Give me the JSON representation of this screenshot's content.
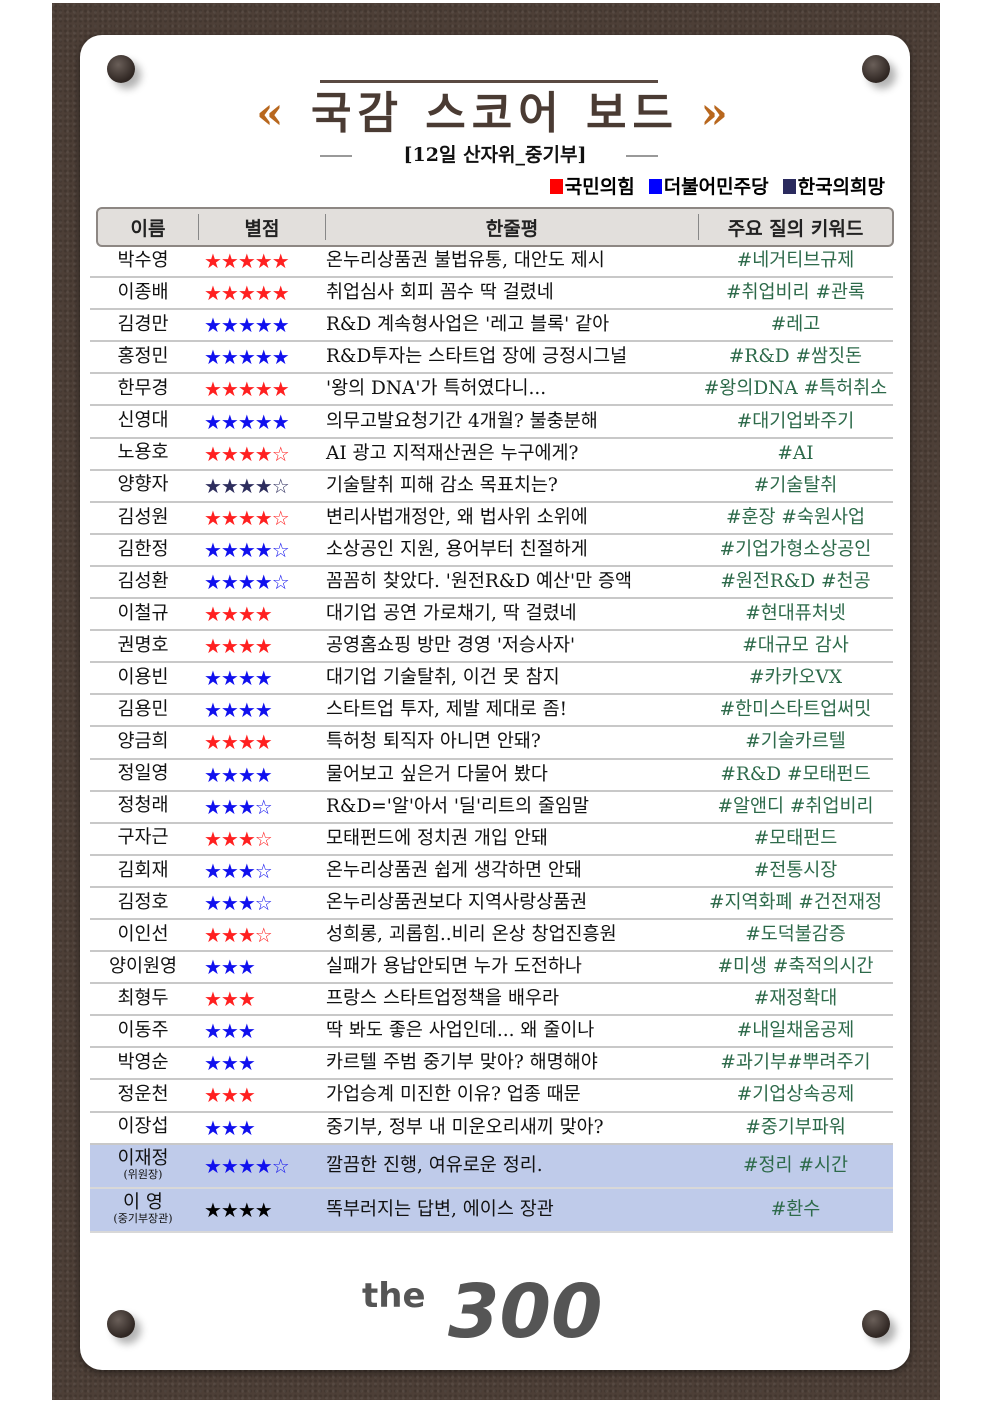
{
  "header": {
    "title": "국감 스코어 보드",
    "left_mark": "«",
    "right_mark": "»",
    "subtitle": "[12일 산자위_중기부]"
  },
  "legend": [
    {
      "label": "국민의힘",
      "color": "#ff0000"
    },
    {
      "label": "더불어민주당",
      "color": "#0000ff"
    },
    {
      "label": "한국의희망",
      "color": "#2a2a5e"
    }
  ],
  "columns": [
    "이름",
    "별점",
    "한줄평",
    "주요 질의 키워드"
  ],
  "party_colors": {
    "ppp": "#ff2020",
    "dem": "#1010ee",
    "hope": "#2e2e5e",
    "gov": "#000000"
  },
  "rows": [
    {
      "name": "박수영",
      "party": "ppp",
      "rating": "★★★★★",
      "comment": "온누리상품권 불법유통, 대안도 제시",
      "keyword": "#네거티브규제"
    },
    {
      "name": "이종배",
      "party": "ppp",
      "rating": "★★★★★",
      "comment": "취업심사 회피 꼼수 딱 걸렸네",
      "keyword": "#취업비리 #관록"
    },
    {
      "name": "김경만",
      "party": "dem",
      "rating": "★★★★★",
      "comment": "R&D 계속형사업은 '레고 블록' 같아",
      "keyword": "#레고"
    },
    {
      "name": "홍정민",
      "party": "dem",
      "rating": "★★★★★",
      "comment": "R&D투자는 스타트업 장에 긍정시그널",
      "keyword": "#R&D #쌈짓돈"
    },
    {
      "name": "한무경",
      "party": "ppp",
      "rating": "★★★★★",
      "comment": "'왕의 DNA'가 특허였다니...",
      "keyword": "#왕의DNA #특허취소"
    },
    {
      "name": "신영대",
      "party": "dem",
      "rating": "★★★★★",
      "comment": "의무고발요청기간 4개월? 불충분해",
      "keyword": "#대기업봐주기"
    },
    {
      "name": "노용호",
      "party": "ppp",
      "rating": "★★★★☆",
      "comment": "AI 광고 지적재산권은 누구에게?",
      "keyword": "#AI"
    },
    {
      "name": "양향자",
      "party": "hope",
      "rating": "★★★★☆",
      "comment": "기술탈취 피해 감소 목표치는?",
      "keyword": "#기술탈취"
    },
    {
      "name": "김성원",
      "party": "ppp",
      "rating": "★★★★☆",
      "comment": "변리사법개정안, 왜 법사위 소위에",
      "keyword": "#훈장 #숙원사업"
    },
    {
      "name": "김한정",
      "party": "dem",
      "rating": "★★★★☆",
      "comment": "소상공인 지원, 용어부터 친절하게",
      "keyword": "#기업가형소상공인"
    },
    {
      "name": "김성환",
      "party": "dem",
      "rating": "★★★★☆",
      "comment": "꼼꼼히 찾았다. '원전R&D 예산'만 증액",
      "keyword": "#원전R&D #천공"
    },
    {
      "name": "이철규",
      "party": "ppp",
      "rating": "★★★★",
      "comment": "대기업 공연 가로채기, 딱 걸렸네",
      "keyword": "#현대퓨처넷"
    },
    {
      "name": "권명호",
      "party": "ppp",
      "rating": "★★★★",
      "comment": "공영홈쇼핑 방만 경영 '저승사자'",
      "keyword": "#대규모 감사"
    },
    {
      "name": "이용빈",
      "party": "dem",
      "rating": "★★★★",
      "comment": "대기업 기술탈취, 이건 못 참지",
      "keyword": "#카카오VX"
    },
    {
      "name": "김용민",
      "party": "dem",
      "rating": "★★★★",
      "comment": "스타트업 투자, 제발 제대로 좀!",
      "keyword": "#한미스타트업써밋"
    },
    {
      "name": "양금희",
      "party": "ppp",
      "rating": "★★★★",
      "comment": "특허청 퇴직자 아니면 안돼?",
      "keyword": "#기술카르텔"
    },
    {
      "name": "정일영",
      "party": "dem",
      "rating": "★★★★",
      "comment": "물어보고 싶은거 다물어 봤다",
      "keyword": "#R&D #모태펀드"
    },
    {
      "name": "정청래",
      "party": "dem",
      "rating": "★★★☆",
      "comment": "R&D='알'아서 '딜'리트의 줄임말",
      "keyword": "#알앤디 #취업비리"
    },
    {
      "name": "구자근",
      "party": "ppp",
      "rating": "★★★☆",
      "comment": "모태펀드에 정치권 개입 안돼",
      "keyword": "#모태펀드"
    },
    {
      "name": "김회재",
      "party": "dem",
      "rating": "★★★☆",
      "comment": "온누리상품권 쉽게 생각하면 안돼",
      "keyword": "#전통시장"
    },
    {
      "name": "김정호",
      "party": "dem",
      "rating": "★★★☆",
      "comment": "온누리상품권보다 지역사랑상품권",
      "keyword": "#지역화폐 #건전재정"
    },
    {
      "name": "이인선",
      "party": "ppp",
      "rating": "★★★☆",
      "comment": "성희롱, 괴롭힘..비리 온상 창업진흥원",
      "keyword": "#도덕불감증"
    },
    {
      "name": "양이원영",
      "party": "dem",
      "rating": "★★★",
      "comment": "실패가 용납안되면 누가 도전하나",
      "keyword": "#미생 #축적의시간"
    },
    {
      "name": "최형두",
      "party": "ppp",
      "rating": "★★★",
      "comment": "프랑스 스타트업정책을 배우라",
      "keyword": "#재정확대"
    },
    {
      "name": "이동주",
      "party": "dem",
      "rating": "★★★",
      "comment": "딱 봐도 좋은 사업인데... 왜 줄이나",
      "keyword": "#내일채움공제"
    },
    {
      "name": "박영순",
      "party": "dem",
      "rating": "★★★",
      "comment": "카르텔 주범 중기부 맞아? 해명해야",
      "keyword": "#과기부#뿌려주기"
    },
    {
      "name": "정운천",
      "party": "ppp",
      "rating": "★★★",
      "comment": "가업승계 미진한 이유? 업종 때문",
      "keyword": "#기업상속공제"
    },
    {
      "name": "이장섭",
      "party": "dem",
      "rating": "★★★",
      "comment": "중기부, 정부 내 미운오리새끼 맞아?",
      "keyword": "#중기부파워"
    }
  ],
  "highlight_rows": [
    {
      "name": "이재정",
      "role": "(위원장)",
      "party": "dem",
      "rating": "★★★★☆",
      "comment": "깔끔한 진행, 여유로운 정리.",
      "keyword": "#정리 #시간"
    },
    {
      "name": "이 영",
      "role": "(중기부장관)",
      "party": "gov",
      "rating": "★★★★",
      "comment": "똑부러지는 답변, 에이스 장관",
      "keyword": "#환수"
    }
  ],
  "logo": {
    "text_small": "the",
    "text_big": "300"
  }
}
